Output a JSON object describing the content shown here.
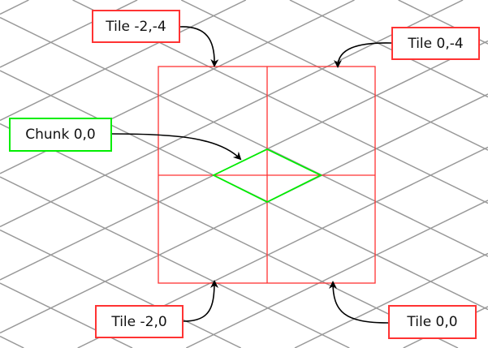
{
  "colors": {
    "grid": "#999999",
    "tile": "#ff3333",
    "chunk": "#00ee00",
    "arrow": "#000000"
  },
  "labels": {
    "tile_m2_m4": "Tile -2,-4",
    "tile_0_m4": "Tile 0,-4",
    "chunk_0_0": "Chunk 0,0",
    "tile_m2_0": "Tile -2,0",
    "tile_0_0": "Tile 0,0"
  }
}
